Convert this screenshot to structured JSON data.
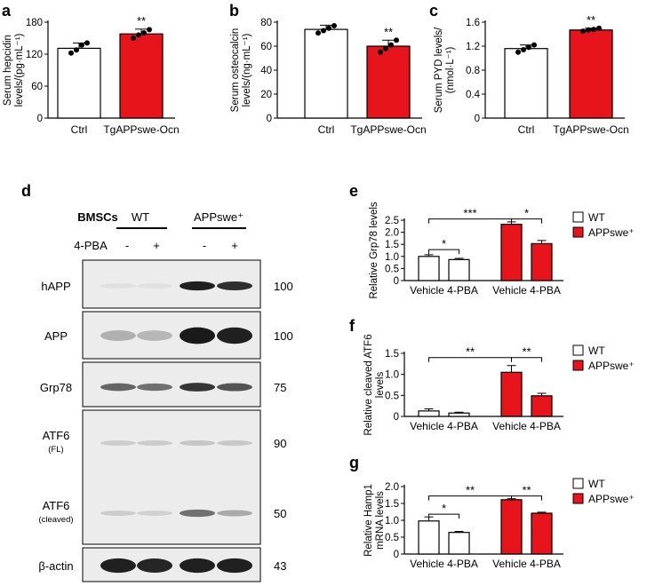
{
  "colors": {
    "wt": "#ffffff",
    "mut": "#e8141b",
    "axis": "#000000",
    "blot_bg": "#e6e6e6"
  },
  "panel_labels": {
    "a": "a",
    "b": "b",
    "c": "c",
    "d": "d",
    "e": "e",
    "f": "f",
    "g": "g"
  },
  "chart_data": [
    {
      "id": "a",
      "type": "bar",
      "ylabel_lines": [
        "Serum hepcidin",
        "levels/(pg·mL⁻¹)"
      ],
      "categories": [
        "Ctrl",
        "TgAPPswe-Ocn"
      ],
      "values": [
        131,
        158
      ],
      "errors": [
        10,
        9
      ],
      "points": [
        [
          122,
          128,
          137,
          141
        ],
        [
          150,
          156,
          160,
          166
        ]
      ],
      "ylim": [
        0,
        180
      ],
      "yticks": [
        0,
        60,
        120,
        180
      ],
      "colors": [
        "#ffffff",
        "#e8141b"
      ],
      "significance": [
        {
          "bar": 1,
          "label": "**"
        }
      ]
    },
    {
      "id": "b",
      "type": "bar",
      "ylabel_lines": [
        "Serum osteocalcin",
        "levels/(ng·mL⁻¹)"
      ],
      "categories": [
        "Ctrl",
        "TgAPPswe-Ocn"
      ],
      "values": [
        74,
        60
      ],
      "errors": [
        3.5,
        5
      ],
      "points": [
        [
          71,
          73,
          75,
          77
        ],
        [
          55,
          58,
          61,
          65
        ]
      ],
      "ylim": [
        0,
        80
      ],
      "yticks": [
        0,
        20,
        40,
        60,
        80
      ],
      "colors": [
        "#ffffff",
        "#e8141b"
      ],
      "significance": [
        {
          "bar": 1,
          "label": "**"
        }
      ]
    },
    {
      "id": "c",
      "type": "bar",
      "ylabel_lines": [
        "Serum PYD levels/",
        "(nmol·L⁻¹)"
      ],
      "categories": [
        "Ctrl",
        "TgAPPswe-Ocn"
      ],
      "values": [
        1.16,
        1.47
      ],
      "errors": [
        0.06,
        0.03
      ],
      "points": [
        [
          1.1,
          1.14,
          1.18,
          1.22
        ],
        [
          1.45,
          1.47,
          1.48,
          1.5
        ]
      ],
      "ylim": [
        0,
        1.6
      ],
      "yticks": [
        0,
        0.4,
        0.8,
        1.2,
        1.6
      ],
      "colors": [
        "#ffffff",
        "#e8141b"
      ],
      "significance": [
        {
          "bar": 1,
          "label": "**"
        }
      ]
    },
    {
      "id": "e",
      "type": "bar",
      "ylabel_lines": [
        "Relative Grp78 levels"
      ],
      "group_labels": [
        "Vehicle 4-PBA",
        "Vehicle 4-PBA"
      ],
      "values": [
        1.0,
        0.87,
        2.33,
        1.53
      ],
      "errors": [
        0.07,
        0.05,
        0.1,
        0.13
      ],
      "colors": [
        "#ffffff",
        "#ffffff",
        "#e8141b",
        "#e8141b"
      ],
      "ylim": [
        0,
        2.5
      ],
      "yticks": [
        0,
        0.5,
        1.0,
        1.5,
        2.0,
        2.5
      ],
      "tick_labels": [
        "0",
        "0.5",
        "1.0",
        "1.5",
        "2.0",
        "2.5"
      ],
      "brackets": [
        {
          "from": 0,
          "to": 1,
          "label": "*",
          "level": 1.28
        },
        {
          "from": 0,
          "to": 2,
          "label": "***",
          "level": 2.55
        },
        {
          "from": 2,
          "to": 3,
          "label": "*",
          "level": 2.55
        }
      ],
      "legend": [
        "WT",
        "APPswe⁺"
      ]
    },
    {
      "id": "f",
      "type": "bar",
      "ylabel_lines": [
        "Relative cleaved ATF6",
        "levels"
      ],
      "group_labels": [
        "Vehicle 4-PBA",
        "Vehicle 4-PBA"
      ],
      "values": [
        0.13,
        0.08,
        1.05,
        0.49
      ],
      "errors": [
        0.05,
        0.02,
        0.16,
        0.06
      ],
      "colors": [
        "#ffffff",
        "#ffffff",
        "#e8141b",
        "#e8141b"
      ],
      "ylim": [
        0,
        1.5
      ],
      "yticks": [
        0,
        0.5,
        1.0,
        1.5
      ],
      "tick_labels": [
        "0",
        "0.5",
        "1.0",
        "1.5"
      ],
      "brackets": [
        {
          "from": 0,
          "to": 2,
          "label": "**",
          "level": 1.4
        },
        {
          "from": 2,
          "to": 3,
          "label": "**",
          "level": 1.4
        }
      ],
      "legend": [
        "WT",
        "APPswe⁺"
      ]
    },
    {
      "id": "g",
      "type": "bar",
      "ylabel_lines": [
        "Relative Hamp1",
        "mRNA levels"
      ],
      "group_labels": [
        "Vehicle 4-PBA",
        "Vehicle 4-PBA"
      ],
      "values": [
        0.98,
        0.64,
        1.61,
        1.21
      ],
      "errors": [
        0.12,
        0.03,
        0.03,
        0.03
      ],
      "colors": [
        "#ffffff",
        "#ffffff",
        "#e8141b",
        "#e8141b"
      ],
      "ylim": [
        0,
        2.0
      ],
      "yticks": [
        0,
        0.5,
        1.0,
        1.5,
        2.0
      ],
      "tick_labels": [
        "0",
        "0.5",
        "1.0",
        "1.5",
        "2.0"
      ],
      "brackets": [
        {
          "from": 0,
          "to": 1,
          "label": "*",
          "level": 1.18
        },
        {
          "from": 0,
          "to": 2,
          "label": "**",
          "level": 1.72
        },
        {
          "from": 2,
          "to": 3,
          "label": "**",
          "level": 1.72
        }
      ],
      "legend": [
        "WT",
        "APPswe⁺"
      ]
    }
  ],
  "blot": {
    "title": "BMSCs",
    "groups": [
      "WT",
      "APPswe⁺"
    ],
    "treatment_label": "4-PBA",
    "lane_signs": [
      "-",
      "+",
      "-",
      "+"
    ],
    "rows": [
      {
        "label": "hAPP",
        "marker": "100",
        "intensity": [
          0.03,
          0.03,
          0.92,
          0.85
        ]
      },
      {
        "label": "APP",
        "marker": "100",
        "intensity": [
          0.25,
          0.22,
          0.95,
          0.92
        ]
      },
      {
        "label": "Grp78",
        "marker": "75",
        "intensity": [
          0.6,
          0.55,
          0.82,
          0.68
        ]
      },
      {
        "label": "ATF6",
        "sublabel": "(FL)",
        "marker": "90",
        "intensity": [
          0.12,
          0.12,
          0.15,
          0.14
        ]
      },
      {
        "label": "ATF6",
        "sublabel": "(cleaved)",
        "marker": "50",
        "intensity": [
          0.12,
          0.1,
          0.55,
          0.28
        ]
      },
      {
        "label": "β-actin",
        "marker": "43",
        "intensity": [
          0.92,
          0.9,
          0.92,
          0.92
        ]
      }
    ]
  }
}
